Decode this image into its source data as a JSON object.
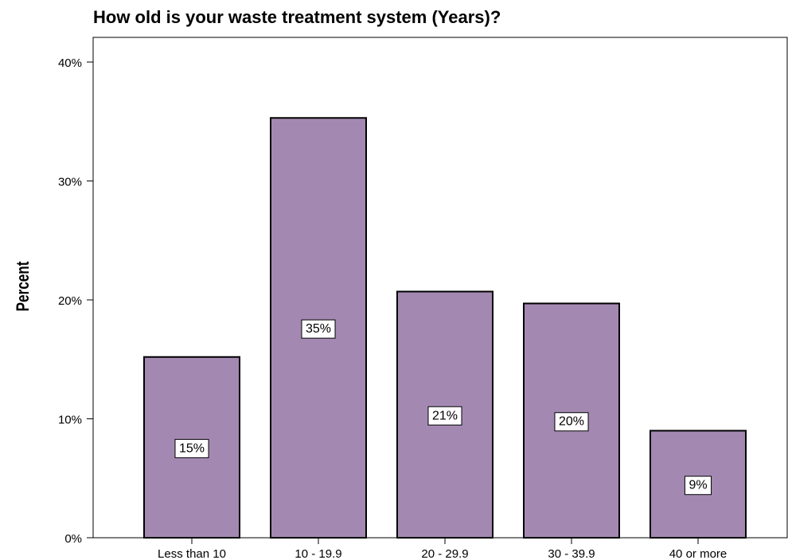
{
  "chart_data": {
    "type": "bar",
    "title": "How old is your waste treatment system (Years)?",
    "xlabel": "",
    "ylabel": "Percent",
    "categories": [
      "Less than 10",
      "10 - 19.9",
      "20 - 29.9",
      "30 - 39.9",
      "40 or more"
    ],
    "values": [
      15.2,
      35.3,
      20.7,
      19.7,
      9.0
    ],
    "data_labels": [
      "15%",
      "35%",
      "21%",
      "20%",
      "9%"
    ],
    "ylim": [
      0,
      40
    ],
    "yticks": [
      0,
      10,
      20,
      30,
      40
    ],
    "ytick_labels": [
      "0%",
      "10%",
      "20%",
      "30%",
      "40%"
    ],
    "grid": false,
    "bar_color": "#a389b2",
    "bar_edge_color": "#000000"
  }
}
